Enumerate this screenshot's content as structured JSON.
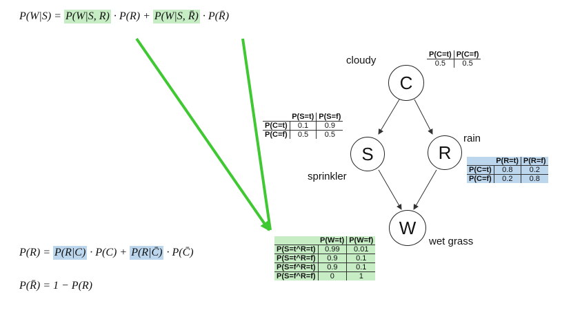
{
  "equations": {
    "eq1": {
      "lhs": "P(W|S) = ",
      "term1": "P(W|S, R)",
      "mid1": " · P(R) + ",
      "term2": "P(W|S, R̄)",
      "tail": " · P(R̄)"
    },
    "eq2": {
      "lhs": "P(R) = ",
      "term1": "P(R|C)",
      "mid1": " · P(C) + ",
      "term2": "P(R|C̄)",
      "tail": " · P(C̄)"
    },
    "eq3": {
      "text": "P(R̄) = 1 − P(R)"
    }
  },
  "nodes": {
    "cloudy": {
      "letter": "C",
      "label": "cloudy"
    },
    "sprinkler": {
      "letter": "S",
      "label": "sprinkler"
    },
    "rain": {
      "letter": "R",
      "label": "rain"
    },
    "wet_grass": {
      "letter": "W",
      "label": "wet grass"
    }
  },
  "tables": {
    "cloudy": {
      "headers": [
        "P(C=t)",
        "P(C=f)"
      ],
      "values": [
        "0.5",
        "0.5"
      ]
    },
    "sprinkler": {
      "headers": [
        "P(S=t)",
        "P(S=f)"
      ],
      "rows": [
        {
          "label": "P(C=t)",
          "values": [
            "0.1",
            "0.9"
          ]
        },
        {
          "label": "P(C=f)",
          "values": [
            "0.5",
            "0.5"
          ]
        }
      ]
    },
    "rain": {
      "headers": [
        "P(R=t)",
        "P(R=f)"
      ],
      "rows": [
        {
          "label": "P(C=t)",
          "values": [
            "0.8",
            "0.2"
          ]
        },
        {
          "label": "P(C=f)",
          "values": [
            "0.2",
            "0.8"
          ]
        }
      ]
    },
    "wet_grass": {
      "headers": [
        "P(W=t)",
        "P(W=f)"
      ],
      "rows": [
        {
          "label": "P(S=t^R=t)",
          "values": [
            "0.99",
            "0.01"
          ]
        },
        {
          "label": "P(S=t^R=f)",
          "values": [
            "0.9",
            "0.1"
          ]
        },
        {
          "label": "P(S=f^R=t)",
          "values": [
            "0.9",
            "0.1"
          ]
        },
        {
          "label": "P(S=f^R=f)",
          "values": [
            "0",
            "1"
          ]
        }
      ]
    }
  },
  "colors": {
    "highlight_green": "#c6edc4",
    "highlight_blue": "#bcd6ee",
    "arrow_green": "#3fc832",
    "edge": "#333333"
  }
}
